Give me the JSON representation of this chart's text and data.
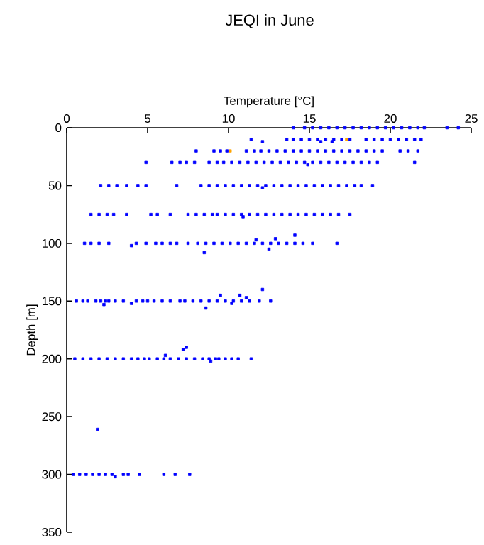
{
  "chart_data": {
    "type": "scatter",
    "title": "JEQI in June",
    "xlabel": "Temperature [°C]",
    "ylabel": "Depth [m]",
    "xlim": [
      0,
      25
    ],
    "xticks": [
      0,
      5,
      10,
      15,
      20,
      25
    ],
    "ylim": [
      350,
      0
    ],
    "yticks": [
      0,
      50,
      100,
      150,
      200,
      250,
      300,
      350
    ],
    "marker": "square",
    "series": [
      {
        "color": "#0000ff",
        "x": [
          14.0,
          14.7,
          15.2,
          15.7,
          16.2,
          16.7,
          17.2,
          17.7,
          18.2,
          18.7,
          19.2,
          19.7,
          20.2,
          20.7,
          21.2,
          21.7,
          22.1,
          23.5,
          24.2
        ],
        "values": [
          0,
          0,
          0,
          0,
          0,
          0,
          0,
          0,
          0,
          0,
          0,
          0,
          0,
          0,
          0,
          0,
          0,
          0,
          0
        ]
      },
      {
        "color": "#0000ff",
        "x": [
          11.4,
          13.6,
          14.0,
          14.5,
          15.0,
          15.5,
          16.0,
          16.5,
          17.0,
          17.5,
          18.5,
          19.0,
          19.5,
          20.0,
          20.5,
          21.0,
          21.5,
          21.9,
          12.1,
          15.7,
          16.4
        ],
        "values": [
          10,
          10,
          10,
          10,
          10,
          10,
          10,
          10,
          10,
          10,
          10,
          10,
          10,
          10,
          10,
          10,
          10,
          10,
          12,
          12,
          12
        ]
      },
      {
        "color": "#0000ff",
        "x": [
          8.0,
          9.1,
          9.5,
          9.9,
          11.1,
          11.6,
          12.0,
          12.5,
          13.0,
          13.5,
          14.0,
          14.5,
          15.0,
          15.5,
          16.0,
          16.5,
          17.0,
          17.5,
          18.0,
          18.5,
          19.0,
          19.5,
          20.6,
          21.1,
          21.7
        ],
        "values": [
          20,
          20,
          20,
          20,
          20,
          20,
          20,
          20,
          20,
          20,
          20,
          20,
          20,
          20,
          20,
          20,
          20,
          20,
          20,
          20,
          20,
          20,
          20,
          20,
          20
        ]
      },
      {
        "color": "#0000ff",
        "x": [
          4.9,
          6.5,
          7.0,
          7.4,
          7.9,
          8.8,
          9.3,
          9.7,
          10.2,
          10.7,
          11.2,
          11.7,
          12.2,
          12.7,
          13.2,
          13.7,
          14.2,
          14.7,
          15.2,
          15.7,
          16.2,
          16.7,
          17.2,
          17.7,
          18.2,
          18.7,
          19.2,
          21.5,
          14.9
        ],
        "values": [
          30,
          30,
          30,
          30,
          30,
          30,
          30,
          30,
          30,
          30,
          30,
          30,
          30,
          30,
          30,
          30,
          30,
          30,
          30,
          30,
          30,
          30,
          30,
          30,
          30,
          30,
          30,
          30,
          32
        ]
      },
      {
        "color": "#0000ff",
        "x": [
          2.1,
          2.6,
          3.1,
          3.7,
          4.4,
          4.9,
          6.8,
          8.3,
          8.8,
          9.3,
          9.8,
          10.3,
          10.8,
          11.3,
          11.8,
          12.3,
          12.8,
          13.3,
          13.8,
          14.3,
          14.8,
          15.3,
          15.8,
          16.3,
          16.8,
          17.3,
          17.8,
          18.2,
          18.9,
          12.1
        ],
        "values": [
          50,
          50,
          50,
          50,
          50,
          50,
          50,
          50,
          50,
          50,
          50,
          50,
          50,
          50,
          50,
          50,
          50,
          50,
          50,
          50,
          50,
          50,
          50,
          50,
          50,
          50,
          50,
          50,
          50,
          52
        ]
      },
      {
        "color": "#0000ff",
        "x": [
          1.5,
          2.0,
          2.5,
          2.9,
          3.7,
          5.2,
          5.6,
          6.4,
          7.5,
          8.0,
          8.5,
          9.0,
          9.3,
          9.8,
          10.3,
          10.8,
          11.3,
          11.8,
          12.3,
          12.8,
          13.3,
          13.8,
          14.3,
          14.8,
          15.3,
          15.8,
          16.3,
          16.8,
          17.5,
          10.9
        ],
        "values": [
          75,
          75,
          75,
          75,
          75,
          75,
          75,
          75,
          75,
          75,
          75,
          75,
          75,
          75,
          75,
          75,
          75,
          75,
          75,
          75,
          75,
          75,
          75,
          75,
          75,
          75,
          75,
          75,
          75,
          77
        ]
      },
      {
        "color": "#0000ff",
        "x": [
          1.1,
          1.5,
          2.0,
          2.6,
          4.3,
          4.9,
          5.5,
          5.9,
          6.4,
          6.8,
          7.5,
          8.1,
          8.6,
          9.1,
          9.6,
          10.1,
          10.6,
          11.1,
          11.6,
          12.1,
          12.6,
          13.1,
          13.6,
          14.1,
          14.6,
          15.2,
          16.7,
          4.0,
          14.1,
          12.9,
          11.7,
          12.5,
          8.5
        ],
        "values": [
          100,
          100,
          100,
          100,
          100,
          100,
          100,
          100,
          100,
          100,
          100,
          100,
          100,
          100,
          100,
          100,
          100,
          100,
          100,
          100,
          100,
          100,
          100,
          100,
          100,
          100,
          100,
          102,
          93,
          96,
          97,
          105,
          108
        ]
      },
      {
        "color": "#0000ff",
        "x": [
          0.6,
          1.0,
          1.3,
          1.8,
          2.1,
          2.4,
          2.6,
          3.0,
          3.5,
          4.3,
          4.7,
          5.0,
          5.4,
          5.9,
          6.4,
          7.0,
          7.3,
          7.8,
          8.3,
          8.8,
          9.3,
          9.8,
          10.3,
          10.8,
          11.3,
          11.9,
          12.6,
          2.3,
          8.6,
          9.5,
          10.2,
          10.7,
          11.1,
          12.1,
          4.0
        ],
        "values": [
          150,
          150,
          150,
          150,
          150,
          150,
          150,
          150,
          150,
          150,
          150,
          150,
          150,
          150,
          150,
          150,
          150,
          150,
          150,
          150,
          150,
          150,
          150,
          150,
          150,
          150,
          150,
          153,
          156,
          145,
          152,
          145,
          147,
          140,
          152
        ]
      },
      {
        "color": "#0000ff",
        "x": [
          0.5,
          1.0,
          1.5,
          2.0,
          2.5,
          3.0,
          3.5,
          4.0,
          4.4,
          4.8,
          5.1,
          5.6,
          6.0,
          6.4,
          6.9,
          7.4,
          7.9,
          8.4,
          8.8,
          9.2,
          9.4,
          9.8,
          10.2,
          10.6,
          11.4,
          7.2,
          7.4,
          8.9,
          6.1
        ],
        "values": [
          200,
          200,
          200,
          200,
          200,
          200,
          200,
          200,
          200,
          200,
          200,
          200,
          200,
          200,
          200,
          200,
          200,
          200,
          200,
          200,
          200,
          200,
          200,
          200,
          200,
          192,
          190,
          202,
          197
        ]
      },
      {
        "color": "#0000ff",
        "x": [
          1.9,
          0.4,
          0.8,
          1.2,
          1.6,
          2.0,
          2.4,
          2.8,
          3.5,
          3.8,
          4.5,
          6.0,
          6.7,
          7.6,
          3.0
        ],
        "values": [
          261,
          300,
          300,
          300,
          300,
          300,
          300,
          300,
          300,
          300,
          300,
          300,
          300,
          300,
          302
        ]
      },
      {
        "color": "#ffa500",
        "x": [
          10.1,
          17.3
        ],
        "values": [
          20,
          10
        ]
      }
    ]
  }
}
